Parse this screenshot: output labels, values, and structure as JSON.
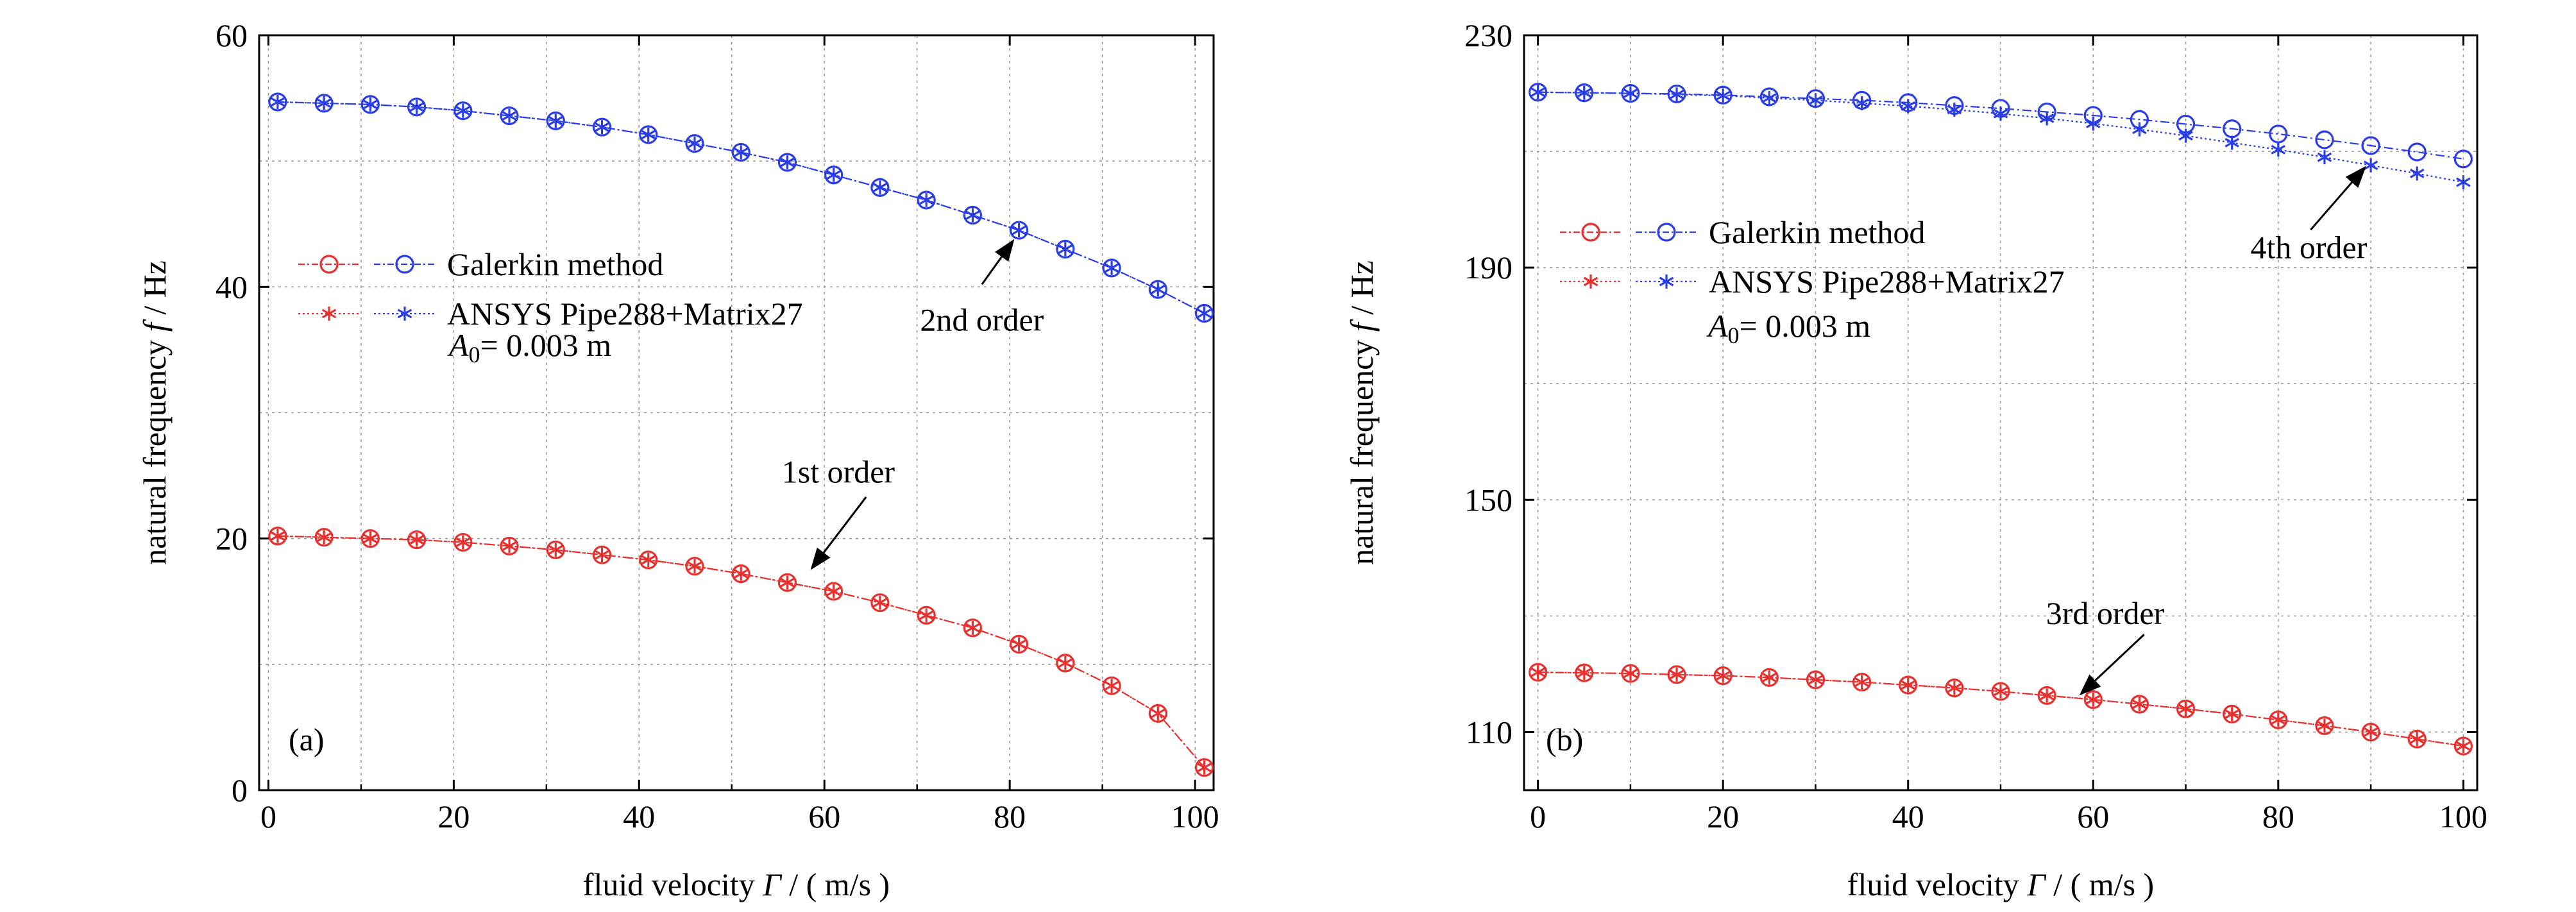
{
  "chart_data": [
    {
      "id": "a",
      "type": "line",
      "panel_label": "(a)",
      "xlabel": "fluid velocity",
      "xlabel_symbol": "Γ",
      "xlabel_unit": "/ ( m/s )",
      "ylabel": "natural  frequency",
      "ylabel_symbol": "f",
      "ylabel_unit": "/ Hz",
      "xlim": [
        -1,
        102
      ],
      "ylim": [
        0,
        60
      ],
      "xticks": [
        0,
        20,
        40,
        60,
        80,
        100
      ],
      "yticks": [
        0,
        20,
        40,
        60
      ],
      "grid": true,
      "x": [
        1,
        6,
        11,
        16,
        21,
        26,
        31,
        36,
        41,
        46,
        51,
        56,
        61,
        66,
        71,
        76,
        81,
        86,
        91,
        96,
        101
      ],
      "series": [
        {
          "method": "Galerkin",
          "color": "#e8312f",
          "marker": "circle",
          "values": [
            20.2,
            20.1,
            20.0,
            19.9,
            19.7,
            19.4,
            19.1,
            18.7,
            18.3,
            17.8,
            17.2,
            16.5,
            15.8,
            14.9,
            13.9,
            12.9,
            11.6,
            10.1,
            8.3,
            6.1,
            1.8
          ]
        },
        {
          "method": "ANSYS",
          "color": "#e8312f",
          "marker": "star",
          "values": [
            20.2,
            20.1,
            20.0,
            19.9,
            19.7,
            19.4,
            19.1,
            18.7,
            18.3,
            17.8,
            17.2,
            16.5,
            15.8,
            14.9,
            13.9,
            12.9,
            11.6,
            10.1,
            8.3,
            6.1,
            1.8
          ]
        },
        {
          "method": "Galerkin",
          "color": "#2b3ee6",
          "marker": "circle",
          "values": [
            54.7,
            54.6,
            54.5,
            54.3,
            54.0,
            53.6,
            53.2,
            52.7,
            52.1,
            51.4,
            50.7,
            49.9,
            48.9,
            47.9,
            46.9,
            45.7,
            44.5,
            43.0,
            41.5,
            39.8,
            37.9
          ]
        },
        {
          "method": "ANSYS",
          "color": "#2b3ee6",
          "marker": "star",
          "values": [
            54.7,
            54.6,
            54.5,
            54.3,
            54.0,
            53.6,
            53.2,
            52.7,
            52.1,
            51.4,
            50.7,
            49.9,
            48.9,
            47.9,
            46.9,
            45.7,
            44.5,
            43.0,
            41.5,
            39.8,
            37.9
          ]
        }
      ],
      "legend": [
        {
          "label": "Galerkin method",
          "marker": "circle"
        },
        {
          "label": "ANSYS  Pipe288+Matrix27",
          "marker": "star"
        }
      ],
      "param_label": "A",
      "param_sub": "0",
      "param_value": "= 0.003 m",
      "annotations": [
        {
          "text": "2nd order",
          "x": 77,
          "y": 37.4,
          "arrow_from": [
            77,
            40.2
          ],
          "arrow_to": [
            80.5,
            43.8
          ]
        },
        {
          "text": "1st order",
          "x": 61.5,
          "y": 25.3,
          "arrow_from": [
            64.5,
            23.3
          ],
          "arrow_to": [
            58.5,
            17.5
          ]
        }
      ]
    },
    {
      "id": "b",
      "type": "line",
      "panel_label": "(b)",
      "xlabel": "fluid velocity",
      "xlabel_symbol": "Γ",
      "xlabel_unit": "/ ( m/s )",
      "ylabel": "natural  frequency",
      "ylabel_symbol": "f",
      "ylabel_unit": "/ Hz",
      "xlim": [
        -1.5,
        101.5
      ],
      "ylim": [
        100,
        230
      ],
      "xticks": [
        0,
        20,
        40,
        60,
        80,
        100
      ],
      "yticks": [
        110,
        150,
        190,
        230
      ],
      "grid": true,
      "x": [
        0,
        5,
        10,
        15,
        20,
        25,
        30,
        35,
        40,
        45,
        50,
        55,
        60,
        65,
        70,
        75,
        80,
        85,
        90,
        95,
        100
      ],
      "series": [
        {
          "method": "Galerkin",
          "color": "#e8312f",
          "marker": "circle",
          "values": [
            120.3,
            120.2,
            120.1,
            119.9,
            119.7,
            119.4,
            119.0,
            118.6,
            118.1,
            117.6,
            117.0,
            116.3,
            115.6,
            114.8,
            114.0,
            113.1,
            112.1,
            111.1,
            110.0,
            108.8,
            107.6
          ]
        },
        {
          "method": "ANSYS",
          "color": "#e8312f",
          "marker": "star",
          "values": [
            120.3,
            120.2,
            120.1,
            119.9,
            119.7,
            119.4,
            119.0,
            118.6,
            118.1,
            117.6,
            117.0,
            116.3,
            115.6,
            114.8,
            114.0,
            113.1,
            112.1,
            111.1,
            110.0,
            108.8,
            107.6
          ]
        },
        {
          "method": "Galerkin",
          "color": "#2b3ee6",
          "marker": "circle",
          "values": [
            220.2,
            220.1,
            220.0,
            219.9,
            219.7,
            219.4,
            219.1,
            218.8,
            218.4,
            217.9,
            217.4,
            216.8,
            216.2,
            215.5,
            214.7,
            213.9,
            213.0,
            212.0,
            211.0,
            209.9,
            208.7
          ]
        },
        {
          "method": "ANSYS",
          "color": "#2b3ee6",
          "marker": "star",
          "values": [
            220.2,
            220.1,
            220.0,
            219.8,
            219.6,
            219.2,
            218.8,
            218.3,
            217.8,
            217.2,
            216.5,
            215.7,
            214.8,
            213.8,
            212.7,
            211.5,
            210.3,
            209.0,
            207.6,
            206.2,
            204.7
          ]
        }
      ],
      "legend": [
        {
          "label": "Galerkin method",
          "marker": "circle"
        },
        {
          "label": "ANSYS  Pipe288+Matrix27",
          "marker": "star"
        }
      ],
      "param_label": "A",
      "param_sub": "0",
      "param_value": "= 0.003 m",
      "annotations": [
        {
          "text": "4th order",
          "x": 83.3,
          "y": 193.5,
          "arrow_from": [
            83.5,
            196.5
          ],
          "arrow_to": [
            89.5,
            207.5
          ]
        },
        {
          "text": "3rd order",
          "x": 61.3,
          "y": 130.5,
          "arrow_from": [
            65.5,
            126.8
          ],
          "arrow_to": [
            58.5,
            116.3
          ]
        }
      ]
    }
  ]
}
